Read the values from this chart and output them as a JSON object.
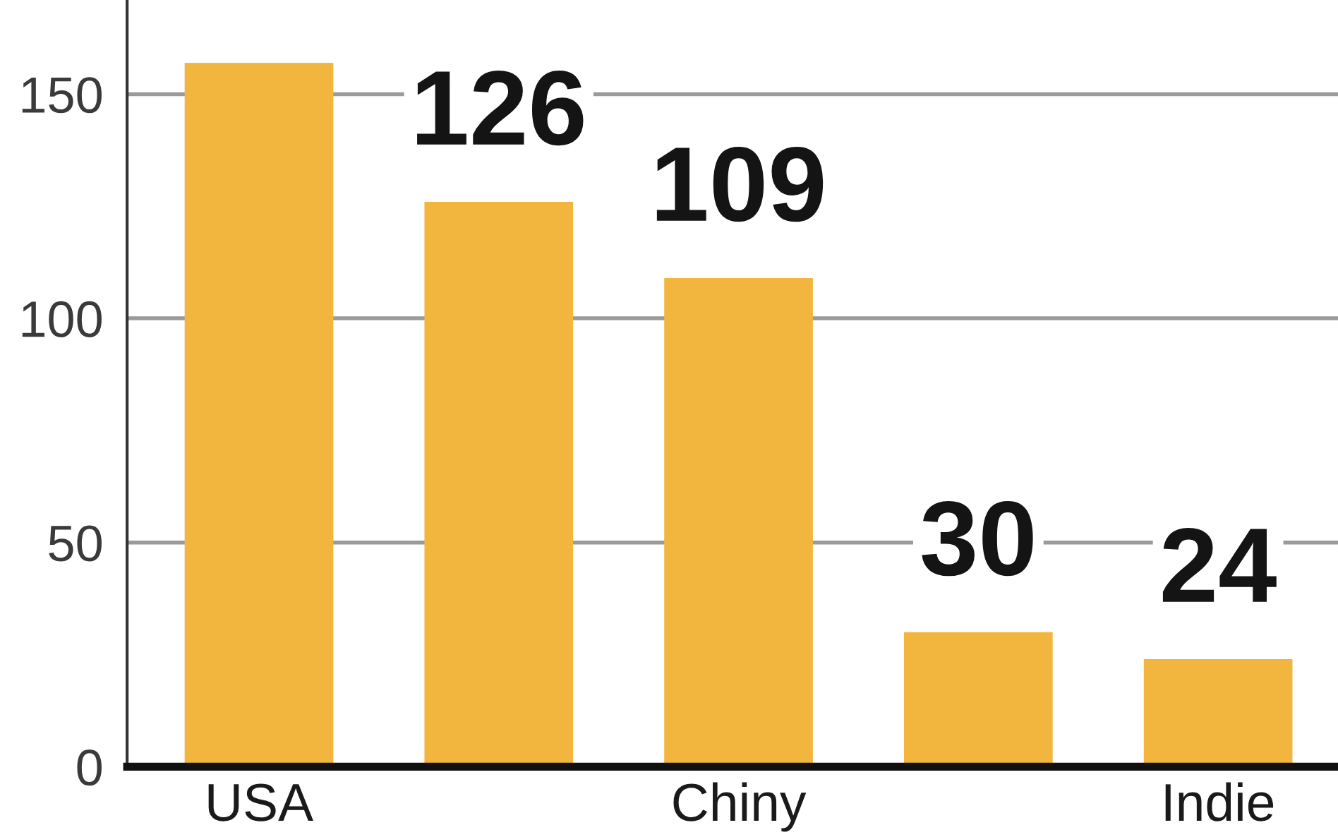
{
  "chart_data": {
    "type": "bar",
    "categories": [
      "USA",
      null,
      "Chiny",
      null,
      "Indie"
    ],
    "values": [
      157,
      126,
      109,
      30,
      24
    ],
    "value_labels": [
      null,
      "126",
      "109",
      "30",
      "24"
    ],
    "color": "#f2b53e",
    "ylim": [
      0,
      171
    ],
    "yticks": [
      0,
      50,
      100,
      150
    ],
    "grid": "y"
  }
}
